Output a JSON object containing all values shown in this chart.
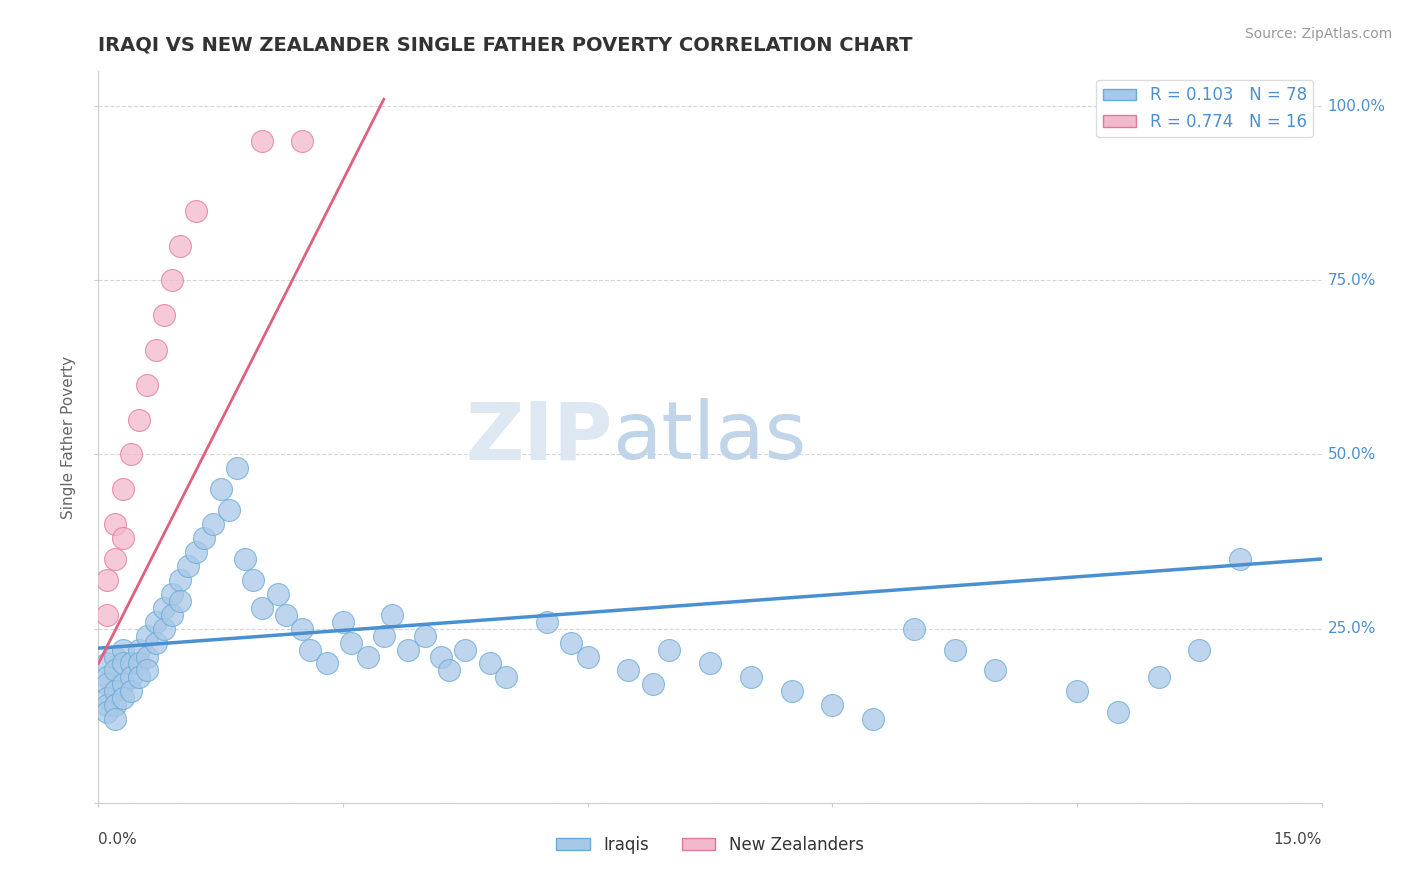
{
  "title": "IRAQI VS NEW ZEALANDER SINGLE FATHER POVERTY CORRELATION CHART",
  "source": "Source: ZipAtlas.com",
  "ylabel": "Single Father Poverty",
  "xlim": [
    0.0,
    0.15
  ],
  "ylim": [
    0.0,
    1.05
  ],
  "iraqis_R": 0.103,
  "iraqis_N": 78,
  "nz_R": 0.774,
  "nz_N": 16,
  "iraqis_color": "#a8c8e8",
  "iraqis_edge_color": "#6aaad4",
  "nz_color": "#f2b8cc",
  "nz_edge_color": "#e07898",
  "iraqis_line_color": "#4a90d0",
  "nz_line_color": "#e06080",
  "label_color": "#4a90d0",
  "watermark_zip_color": "#e0e8f0",
  "watermark_atlas_color": "#b8cfe8",
  "background_color": "#ffffff",
  "grid_color": "#cccccc",
  "iraqis_x": [
    0.001,
    0.001,
    0.001,
    0.001,
    0.001,
    0.001,
    0.002,
    0.002,
    0.002,
    0.002,
    0.002,
    0.003,
    0.003,
    0.003,
    0.003,
    0.004,
    0.004,
    0.004,
    0.005,
    0.005,
    0.005,
    0.006,
    0.006,
    0.006,
    0.007,
    0.007,
    0.008,
    0.008,
    0.009,
    0.009,
    0.01,
    0.01,
    0.011,
    0.012,
    0.013,
    0.014,
    0.015,
    0.016,
    0.017,
    0.018,
    0.019,
    0.02,
    0.022,
    0.023,
    0.025,
    0.026,
    0.028,
    0.03,
    0.031,
    0.033,
    0.035,
    0.036,
    0.038,
    0.04,
    0.042,
    0.043,
    0.045,
    0.048,
    0.05,
    0.055,
    0.058,
    0.06,
    0.065,
    0.068,
    0.07,
    0.075,
    0.08,
    0.085,
    0.09,
    0.095,
    0.1,
    0.105,
    0.11,
    0.12,
    0.125,
    0.13,
    0.135,
    0.14
  ],
  "iraqis_y": [
    0.2,
    0.18,
    0.17,
    0.15,
    0.14,
    0.13,
    0.21,
    0.19,
    0.16,
    0.14,
    0.12,
    0.22,
    0.2,
    0.17,
    0.15,
    0.2,
    0.18,
    0.16,
    0.22,
    0.2,
    0.18,
    0.24,
    0.21,
    0.19,
    0.26,
    0.23,
    0.28,
    0.25,
    0.3,
    0.27,
    0.32,
    0.29,
    0.34,
    0.36,
    0.38,
    0.4,
    0.45,
    0.42,
    0.48,
    0.35,
    0.32,
    0.28,
    0.3,
    0.27,
    0.25,
    0.22,
    0.2,
    0.26,
    0.23,
    0.21,
    0.24,
    0.27,
    0.22,
    0.24,
    0.21,
    0.19,
    0.22,
    0.2,
    0.18,
    0.26,
    0.23,
    0.21,
    0.19,
    0.17,
    0.22,
    0.2,
    0.18,
    0.16,
    0.14,
    0.12,
    0.25,
    0.22,
    0.19,
    0.16,
    0.13,
    0.18,
    0.22,
    0.35
  ],
  "nz_x": [
    0.001,
    0.001,
    0.002,
    0.002,
    0.003,
    0.003,
    0.004,
    0.005,
    0.006,
    0.007,
    0.008,
    0.009,
    0.01,
    0.012,
    0.02,
    0.025
  ],
  "nz_y": [
    0.27,
    0.32,
    0.35,
    0.4,
    0.38,
    0.45,
    0.5,
    0.55,
    0.6,
    0.65,
    0.7,
    0.75,
    0.8,
    0.85,
    0.95,
    0.95
  ],
  "nz_line_x0": 0.0,
  "nz_line_x1": 0.035,
  "iraqis_line_x0": 0.0,
  "iraqis_line_x1": 0.15
}
